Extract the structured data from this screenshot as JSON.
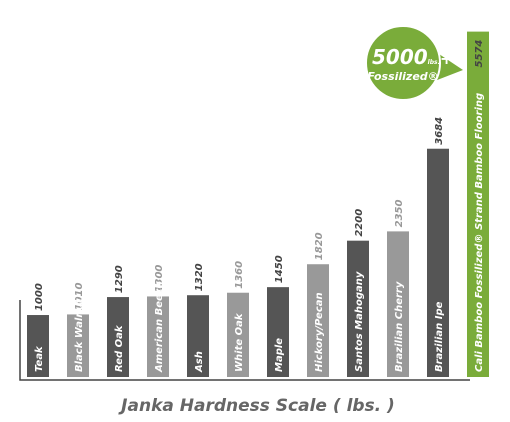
{
  "chart_data": {
    "type": "bar",
    "categories": [
      "Teak",
      "Black Walnut",
      "Red Oak",
      "American Beech",
      "Ash",
      "White Oak",
      "Maple",
      "Hickory/Pecan",
      "Santos Mahogany",
      "Brazilian Cherry",
      "Brazilian Ipe",
      "Cali Bamboo Fossilized® Strand Bamboo Flooring"
    ],
    "values": [
      1000,
      1010,
      1290,
      1300,
      1320,
      1360,
      1450,
      1820,
      2200,
      2350,
      3684,
      5574
    ],
    "colors": [
      "#555555",
      "#999999",
      "#555555",
      "#999999",
      "#555555",
      "#999999",
      "#555555",
      "#999999",
      "#555555",
      "#999999",
      "#555555",
      "#7aac3a"
    ],
    "ylim": [
      0,
      5600
    ],
    "x_label": "Janka Hardness Scale ( lbs. )",
    "badge": {
      "number": "5000",
      "unit": "lbs.",
      "suffix": "+",
      "label": "Fossilized®"
    }
  }
}
